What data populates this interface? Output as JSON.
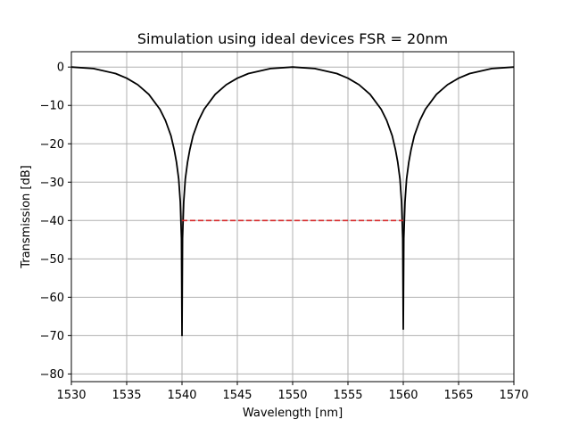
{
  "chart_data": {
    "type": "line",
    "title": "Simulation using ideal devices FSR = 20nm",
    "xlabel": "Wavelength [nm]",
    "ylabel": "Transmission [dB]",
    "xlim": [
      1530,
      1570
    ],
    "ylim": [
      -82,
      4
    ],
    "x_ticks": [
      1530,
      1535,
      1540,
      1545,
      1550,
      1555,
      1560,
      1565,
      1570
    ],
    "y_ticks": [
      0,
      -10,
      -20,
      -30,
      -40,
      -50,
      -60,
      -70,
      -80
    ],
    "grid": true,
    "series": [
      {
        "style": "solid",
        "color": "#000000",
        "x": [
          1530,
          1532,
          1534,
          1535,
          1536,
          1537,
          1538,
          1538.5,
          1539,
          1539.3,
          1539.5,
          1539.7,
          1539.85,
          1539.95,
          1540,
          1540.05,
          1540.15,
          1540.3,
          1540.5,
          1540.7,
          1541,
          1541.5,
          1542,
          1543,
          1544,
          1545,
          1546,
          1548,
          1550,
          1552,
          1554,
          1555,
          1556,
          1557,
          1558,
          1558.5,
          1559,
          1559.3,
          1559.5,
          1559.7,
          1559.85,
          1559.95,
          1560,
          1560.05,
          1560.15,
          1560.3,
          1560.5,
          1560.7,
          1561,
          1561.5,
          1562,
          1563,
          1564,
          1565,
          1566,
          1568,
          1570
        ],
        "y": [
          0,
          -0.4,
          -1.7,
          -2.9,
          -4.6,
          -7.1,
          -11.0,
          -13.9,
          -17.9,
          -21.6,
          -24.8,
          -29.2,
          -35.2,
          -44.7,
          -70,
          -44.7,
          -35.2,
          -29.2,
          -24.8,
          -21.6,
          -17.9,
          -13.9,
          -11.0,
          -7.1,
          -4.6,
          -2.9,
          -1.7,
          -0.4,
          0,
          -0.4,
          -1.7,
          -2.9,
          -4.6,
          -7.1,
          -11.0,
          -13.9,
          -17.9,
          -21.6,
          -24.8,
          -29.2,
          -35.2,
          -44.7,
          -68.3,
          -44.7,
          -35.2,
          -29.2,
          -24.8,
          -21.6,
          -17.9,
          -13.9,
          -11.0,
          -7.1,
          -4.6,
          -2.9,
          -1.7,
          -0.4,
          0
        ]
      },
      {
        "style": "dashed",
        "color": "#d62728",
        "x": [
          1540,
          1560
        ],
        "y": [
          -40,
          -40
        ]
      }
    ]
  }
}
